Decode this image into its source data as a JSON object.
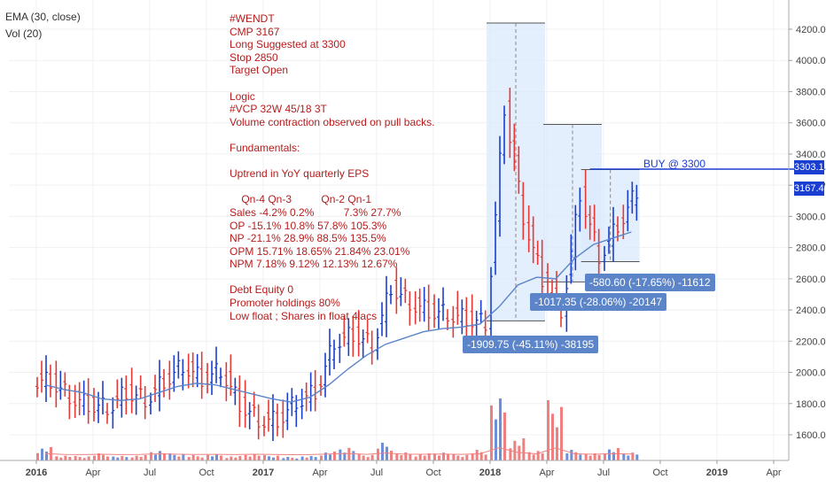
{
  "legend": {
    "ema": "EMA (30, close)",
    "vol": "Vol (20)"
  },
  "notes": [
    "#WENDT",
    "CMP 3167",
    "Long Suggested at 3300",
    "Stop 2850",
    "Target Open",
    "",
    "Logic",
    "#VCP 32W 45/18 3T",
    "Volume contraction observed on pull backs.",
    "",
    "Fundamentals:",
    "",
    "Uptrend in YoY quarterly EPS",
    "",
    "    Qn-4 Qn-3          Qn-2 Qn-1",
    "Sales -4.2% 0.2%          7.3% 27.7%",
    "OP -15.1% 10.8% 57.8% 105.3%",
    "NP -21.1% 28.9% 88.5% 135.5%",
    "OPM 15.71% 18.65% 21.84% 23.01%",
    "NPM 7.18% 9.12% 12.13% 12.67%",
    "",
    "Debt Equity 0",
    "Promoter holdings 80%",
    "Low float ; Shares in float 4lacs"
  ],
  "measurements": [
    {
      "label": "-1909.75 (-45.11%) -38195",
      "color": "#5b84c9"
    },
    {
      "label": "-1017.35 (-28.06%) -20147",
      "color": "#5b84c9"
    },
    {
      "label": "-580.60 (-17.65%) -11612",
      "color": "#5b84c9"
    }
  ],
  "buy_label": "BUY @ 3300",
  "price_tags": [
    "3303.10",
    "3167.40"
  ],
  "colors": {
    "up": "#1a3ecf",
    "down": "#e53935",
    "ema": "#5b84c9",
    "note": "#b71c1c",
    "box_fill": "#dbeafc",
    "measure_label": "#5b84c9",
    "vol_up": "#6c8fdb",
    "vol_down": "#f08080"
  },
  "chart_data": {
    "type": "line",
    "title": "",
    "xlabel": "",
    "ylabel": "",
    "ylim": [
      1450,
      4300
    ],
    "y_ticks": [
      1600,
      1800,
      2000,
      2200,
      2400,
      2600,
      2800,
      3000,
      3200,
      3400,
      3600,
      3800,
      4000,
      4200
    ],
    "y_tick_labels": [
      "1600.00",
      "1800.00",
      "2000.00",
      "2200.00",
      "2400.00",
      "2600.00",
      "2800.00",
      "3000.00",
      "3200.00",
      "3400.00",
      "3600.00",
      "3800.00",
      "4000.00",
      "4200.00"
    ],
    "x_ticks": [
      "2016",
      "Apr",
      "Jul",
      "Oct",
      "2017",
      "Apr",
      "Jul",
      "Oct",
      "2018",
      "Apr",
      "Jul",
      "Oct",
      "2019",
      "Apr"
    ],
    "grid": true,
    "series": [
      {
        "name": "EMA (30, close)",
        "x": [
          "2016-01",
          "2016-02",
          "2016-03",
          "2016-04",
          "2016-05",
          "2016-06",
          "2016-07",
          "2016-08",
          "2016-09",
          "2016-10",
          "2016-11",
          "2016-12",
          "2017-01",
          "2017-02",
          "2017-03",
          "2017-04",
          "2017-05",
          "2017-06",
          "2017-07",
          "2017-08",
          "2017-09",
          "2017-10",
          "2017-11",
          "2017-12",
          "2018-01",
          "2018-02",
          "2018-03",
          "2018-04",
          "2018-05",
          "2018-06",
          "2018-07",
          "2018-08"
        ],
        "values": [
          1920,
          1890,
          1870,
          1830,
          1820,
          1830,
          1870,
          1910,
          1930,
          1920,
          1890,
          1860,
          1830,
          1810,
          1840,
          1920,
          2020,
          2110,
          2180,
          2220,
          2260,
          2280,
          2290,
          2310,
          2420,
          2560,
          2610,
          2600,
          2730,
          2820,
          2860,
          2900
        ]
      },
      {
        "name": "Close",
        "x": [
          "2016-01",
          "2016-02",
          "2016-03",
          "2016-04",
          "2016-05",
          "2016-06",
          "2016-07",
          "2016-08",
          "2016-09",
          "2016-10",
          "2016-11",
          "2016-12",
          "2017-01",
          "2017-02",
          "2017-03",
          "2017-04",
          "2017-05",
          "2017-06",
          "2017-07",
          "2017-08",
          "2017-09",
          "2017-10",
          "2017-11",
          "2017-12",
          "2018-01",
          "2018-02",
          "2018-03",
          "2018-04",
          "2018-05",
          "2018-06",
          "2018-07",
          "2018-08"
        ],
        "values": [
          1950,
          1850,
          1800,
          1780,
          1880,
          1830,
          1950,
          2050,
          1960,
          2020,
          1800,
          1700,
          1700,
          1820,
          1880,
          2200,
          2250,
          2180,
          2550,
          2450,
          2400,
          2380,
          2350,
          2320,
          3700,
          3000,
          2600,
          2400,
          3150,
          2750,
          2950,
          3167
        ]
      }
    ],
    "volume": {
      "label": "Vol (20)",
      "x": [
        "2016-01",
        "2016-02",
        "2016-03",
        "2016-04",
        "2016-05",
        "2016-06",
        "2016-07",
        "2016-08",
        "2016-09",
        "2016-10",
        "2016-11",
        "2016-12",
        "2017-01",
        "2017-02",
        "2017-03",
        "2017-04",
        "2017-05",
        "2017-06",
        "2017-07",
        "2017-08",
        "2017-09",
        "2017-10",
        "2017-11",
        "2017-12",
        "2018-01",
        "2018-02",
        "2018-03",
        "2018-04",
        "2018-05",
        "2018-06",
        "2018-07",
        "2018-08"
      ],
      "values": [
        15,
        6,
        5,
        8,
        5,
        6,
        12,
        8,
        6,
        7,
        5,
        8,
        6,
        4,
        5,
        10,
        16,
        7,
        20,
        9,
        8,
        10,
        7,
        12,
        70,
        25,
        12,
        68,
        12,
        8,
        14,
        10
      ]
    },
    "annotations": [
      {
        "type": "range",
        "from": "2018-01",
        "to": "2018-03",
        "price_high": 4240,
        "price_low": 2330
      },
      {
        "type": "range",
        "from": "2018-04",
        "to": "2018-06",
        "price_high": 3590,
        "price_low": 2580
      },
      {
        "type": "range",
        "from": "2018-06",
        "to": "2018-08",
        "price_high": 3300,
        "price_low": 2710
      },
      {
        "type": "hline",
        "price": 3303.1,
        "text": "BUY @ 3300"
      }
    ]
  }
}
